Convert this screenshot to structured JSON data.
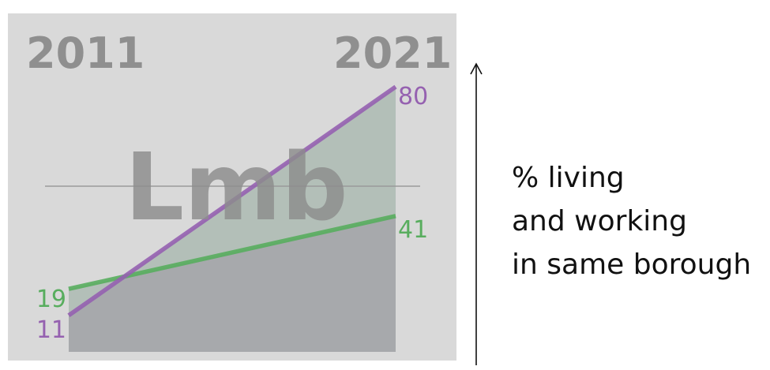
{
  "chart_data": {
    "type": "area",
    "x": [
      "2011",
      "2021"
    ],
    "borough_code": "Lmb",
    "series": [
      {
        "values": [
          19,
          41
        ],
        "color": "#58ad5e",
        "fill": "#a3c9a5"
      },
      {
        "values": [
          11,
          80
        ],
        "color": "#9561b0",
        "fill": "#c6b2cd"
      }
    ],
    "ylim": [
      0,
      100
    ],
    "ylabel_lines": [
      "% living",
      "and working",
      "in same borough"
    ]
  },
  "colors": {
    "panel": "#d9d9d9",
    "base_area": "#a7a9ac",
    "midline": "#9a9a9a",
    "arrow": "#111111"
  }
}
